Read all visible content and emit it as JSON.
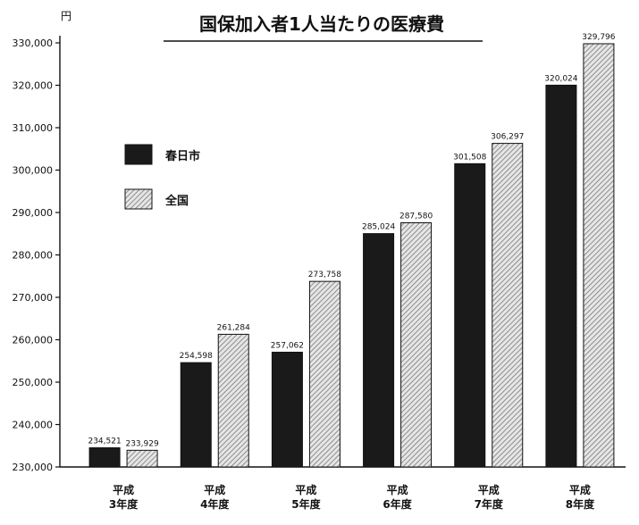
{
  "chart_data": {
    "type": "bar",
    "title": "国保加入者1人当たりの医療費",
    "ylabel": "円",
    "xlabel": "",
    "ylim": [
      230000,
      330000
    ],
    "yticks": [
      230000,
      240000,
      250000,
      260000,
      270000,
      280000,
      290000,
      300000,
      310000,
      320000,
      330000
    ],
    "ytick_labels": [
      "230,000",
      "240,000",
      "250,000",
      "260,000",
      "270,000",
      "280,000",
      "290,000",
      "300,000",
      "310,000",
      "320,000",
      "330,000"
    ],
    "categories": [
      [
        "平成",
        "3年度"
      ],
      [
        "平成",
        "4年度"
      ],
      [
        "平成",
        "5年度"
      ],
      [
        "平成",
        "6年度"
      ],
      [
        "平成",
        "7年度"
      ],
      [
        "平成",
        "8年度"
      ]
    ],
    "legend_position": "upper-left",
    "series": [
      {
        "name": "春日市",
        "color": "#1a1a1a",
        "values": [
          234521,
          254598,
          257062,
          285024,
          301508,
          320024
        ],
        "labels": [
          "234,521",
          "254,598",
          "257,062",
          "285,024",
          "301,508",
          "320,024"
        ]
      },
      {
        "name": "全国",
        "color": "#9a9a9a",
        "values": [
          233929,
          261284,
          273758,
          287580,
          306297,
          329796
        ],
        "labels": [
          "233,929",
          "261,284",
          "273,758",
          "287,580",
          "306,297",
          "329,796"
        ]
      }
    ],
    "grid": false
  }
}
